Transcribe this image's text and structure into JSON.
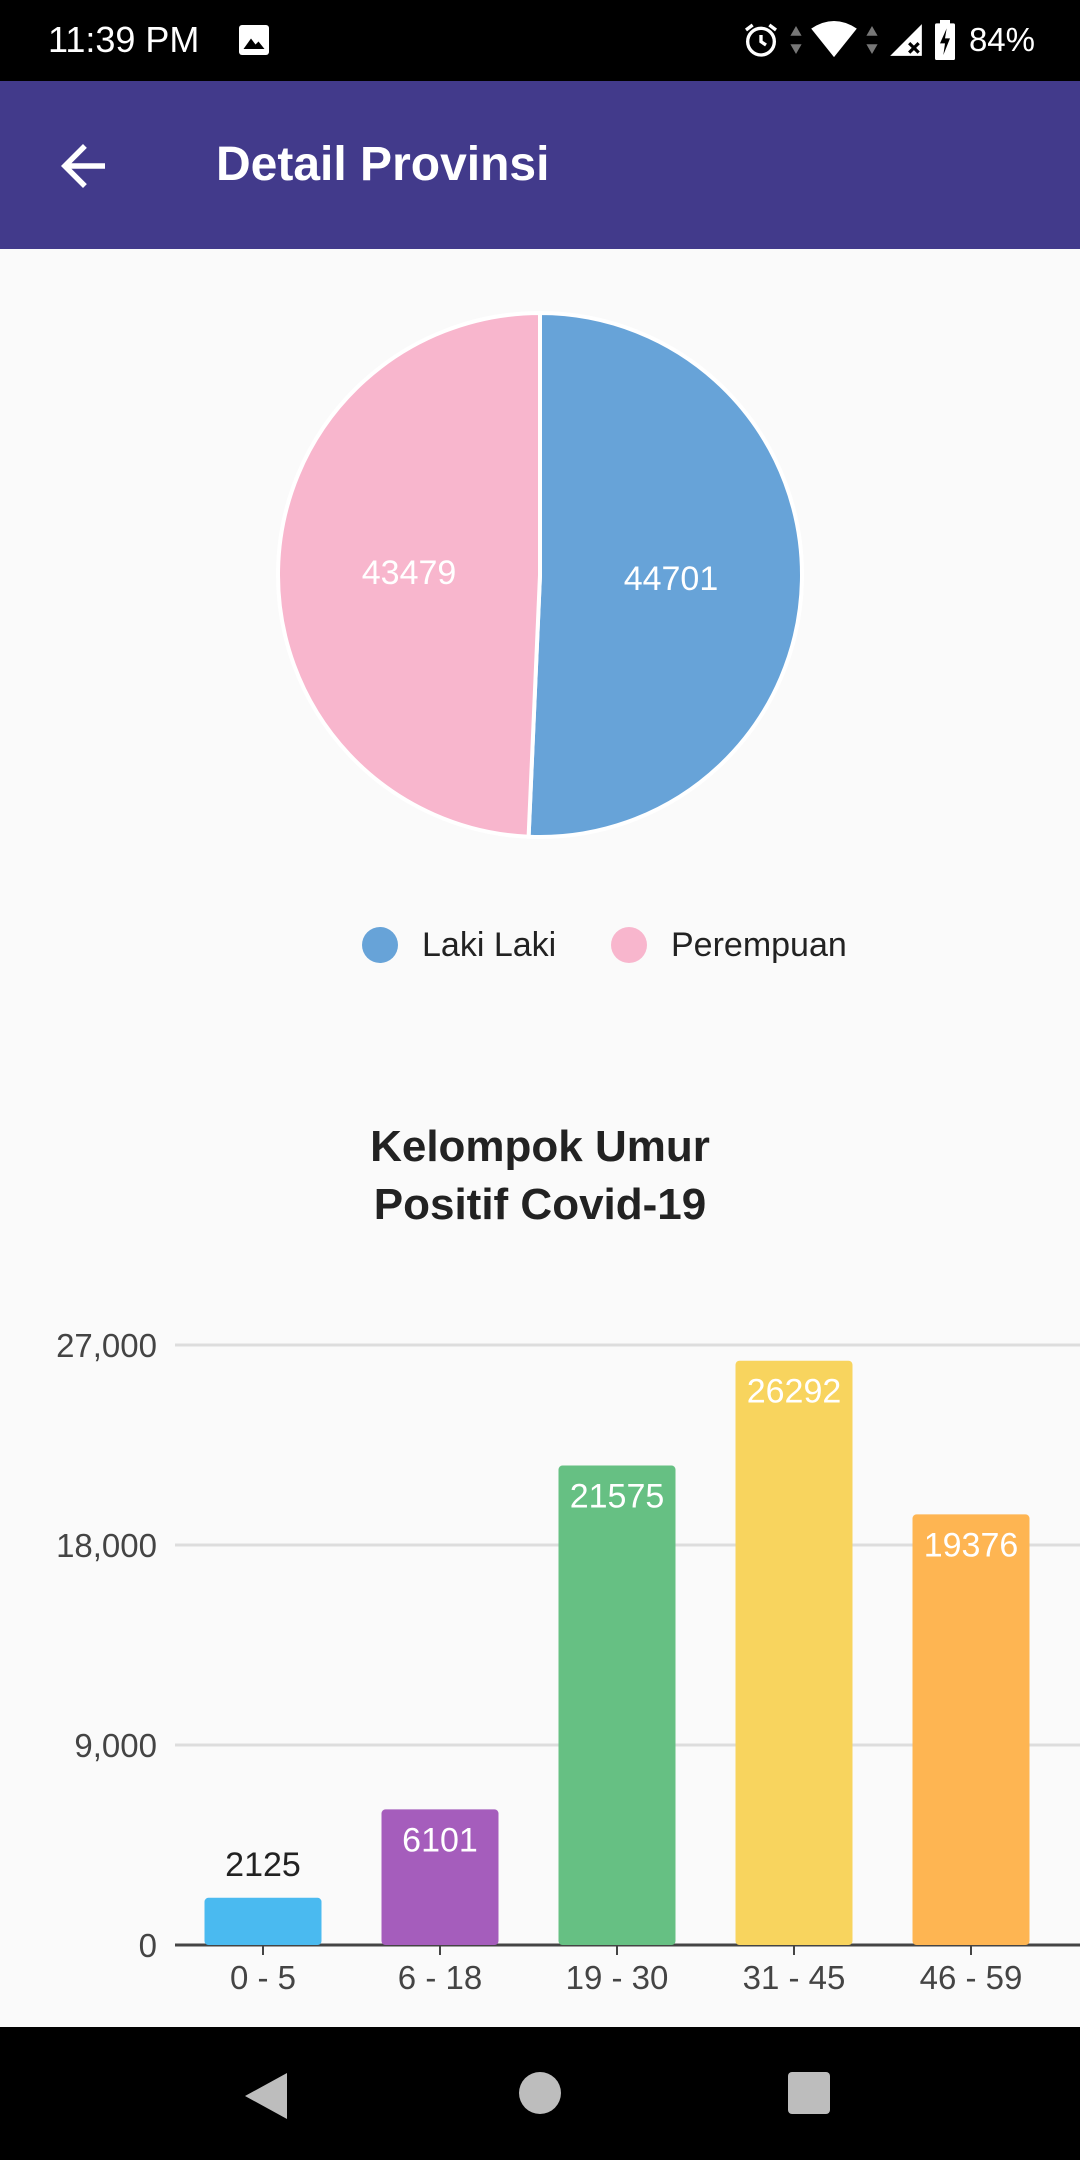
{
  "status_bar": {
    "time": "11:39 PM",
    "battery": "84%",
    "icons": [
      "image-icon",
      "alarm-icon",
      "wifi-icon",
      "cell-signal-icon",
      "battery-charging-icon"
    ]
  },
  "app_bar": {
    "title": "Detail Provinsi",
    "back_icon": "arrow-left-icon"
  },
  "gender_chart": {
    "type": "pie",
    "slices": [
      {
        "name": "Laki Laki",
        "value": 44701,
        "color": "#67A3D8"
      },
      {
        "name": "Perempuan",
        "value": 43479,
        "color": "#F8B6CD"
      }
    ]
  },
  "legend": {
    "items": [
      {
        "label": "Laki Laki",
        "color": "#67A3D8"
      },
      {
        "label": "Perempuan",
        "color": "#F8B6CD"
      }
    ]
  },
  "chart_data": {
    "type": "bar",
    "title": "Kelompok Umur\nPositif Covid-19",
    "title_lines": [
      "Kelompok Umur",
      "Positif Covid-19"
    ],
    "categories": [
      "0 - 5",
      "6 - 18",
      "19 - 30",
      "31 - 45",
      "46 - 59"
    ],
    "values": [
      2125,
      6101,
      21575,
      26292,
      19376
    ],
    "value_labels": [
      "2125",
      "6101",
      "21575",
      "26292",
      "19376"
    ],
    "colors": [
      "#4ABAF0",
      "#A55DBC",
      "#66C083",
      "#F8D45E",
      "#FEB552"
    ],
    "ylim": [
      0,
      27000
    ],
    "yticks": [
      0,
      9000,
      18000,
      27000
    ],
    "ytick_labels": [
      "0",
      "9,000",
      "18,000",
      "27,000"
    ],
    "grid": true,
    "xlabel": "",
    "ylabel": ""
  },
  "nav_bar": {
    "buttons": [
      "back-triangle-icon",
      "home-circle-icon",
      "recents-square-icon"
    ]
  }
}
